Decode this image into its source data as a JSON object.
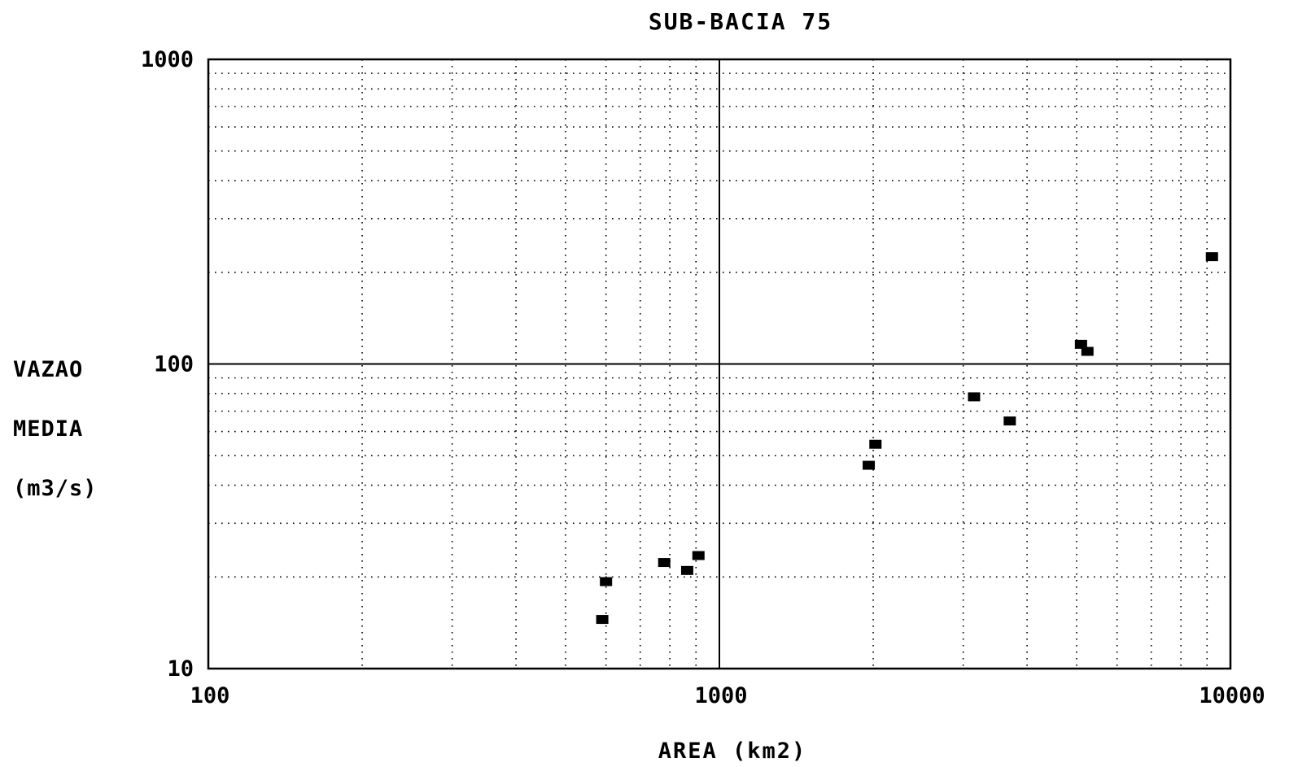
{
  "chart_data": {
    "type": "scatter",
    "title": "SUB-BACIA 75",
    "xlabel": "AREA (km2)",
    "ylabel_lines": [
      "VAZAO",
      "MEDIA",
      "(m3/s)"
    ],
    "x_scale": "log",
    "y_scale": "log",
    "xlim": [
      100,
      10000
    ],
    "ylim": [
      10,
      1000
    ],
    "x_ticks": [
      {
        "value": 100,
        "label": "100"
      },
      {
        "value": 1000,
        "label": "1000"
      },
      {
        "value": 10000,
        "label": "10000"
      }
    ],
    "y_ticks": [
      {
        "value": 10,
        "label": "10"
      },
      {
        "value": 100,
        "label": "100"
      },
      {
        "value": 1000,
        "label": "1000"
      }
    ],
    "grid": true,
    "marker": "square",
    "color": "#000000",
    "points": [
      {
        "x": 590,
        "y": 14.5
      },
      {
        "x": 600,
        "y": 19.3
      },
      {
        "x": 780,
        "y": 22.3
      },
      {
        "x": 865,
        "y": 21.0
      },
      {
        "x": 910,
        "y": 23.5
      },
      {
        "x": 1960,
        "y": 46.5
      },
      {
        "x": 2020,
        "y": 54.5
      },
      {
        "x": 3150,
        "y": 78.0
      },
      {
        "x": 3700,
        "y": 65.0
      },
      {
        "x": 5100,
        "y": 116.0
      },
      {
        "x": 5250,
        "y": 110.0
      },
      {
        "x": 9200,
        "y": 225.0
      }
    ]
  }
}
